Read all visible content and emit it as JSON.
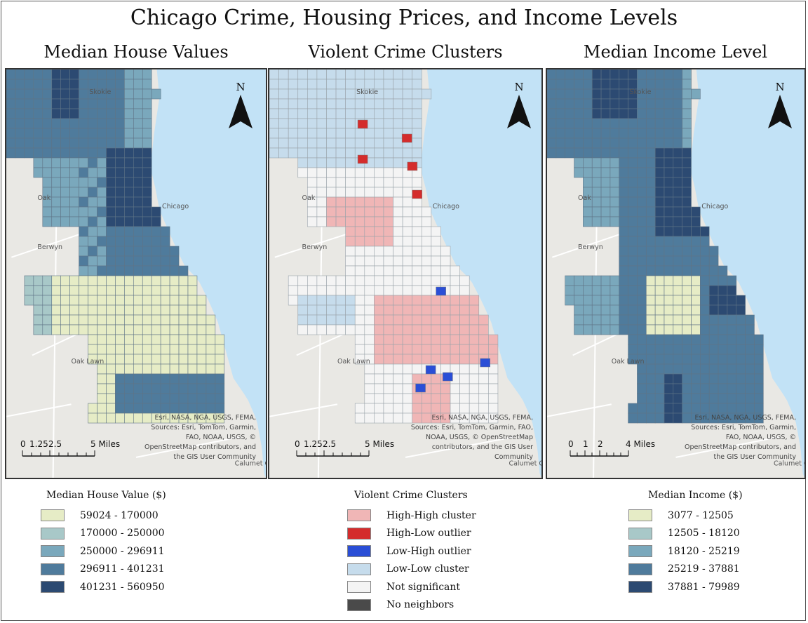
{
  "title": "Chicago Crime, Housing Prices, and Income Levels",
  "panels": [
    {
      "title": "Median House Values",
      "scale": {
        "labels": [
          "0",
          "1.25",
          "2.5",
          "5 Miles"
        ]
      },
      "north": "N",
      "attribution": [
        "Esri, NASA, NGA, USGS, FEMA,",
        "Sources: Esri, TomTom, Garmin,",
        "FAO, NOAA, USGS, ©",
        "OpenStreetMap contributors, and",
        "the GIS User Community"
      ]
    },
    {
      "title": "Violent Crime Clusters",
      "scale": {
        "labels": [
          "0",
          "1.25",
          "2.5",
          "5 Miles"
        ]
      },
      "north": "N",
      "attribution": [
        "Esri, NASA, NGA, USGS, FEMA,",
        "Sources: Esri, TomTom, Garmin, FAO,",
        "NOAA, USGS, © OpenStreetMap",
        "contributors, and the GIS User",
        "Community"
      ]
    },
    {
      "title": "Median Income Level",
      "scale": {
        "labels": [
          "0",
          "1",
          "2",
          "4 Miles"
        ]
      },
      "north": "N",
      "attribution": [
        "Esri, NASA, NGA, USGS, FEMA,",
        "Sources: Esri, TomTom, Garmin,",
        "FAO, NOAA, USGS, ©",
        "OpenStreetMap contributors, and",
        "the GIS User Community"
      ]
    }
  ],
  "place_labels": [
    "Skokie",
    "Oak",
    "Chicago",
    "Berwyn",
    "Oak Lawn",
    "Calumet City"
  ],
  "legends": [
    {
      "title": "Median House Value ($)",
      "items": [
        {
          "label": "59024 - 170000",
          "color": "#e6ecc6"
        },
        {
          "label": "170000 - 250000",
          "color": "#a8c8c8"
        },
        {
          "label": "250000 - 296911",
          "color": "#7aa8bc"
        },
        {
          "label": "296911 - 401231",
          "color": "#4f7b9c"
        },
        {
          "label": "401231 - 560950",
          "color": "#2c4a72"
        }
      ]
    },
    {
      "title": "Violent Crime Clusters",
      "items": [
        {
          "label": "High-High cluster",
          "color": "#f0b6b6"
        },
        {
          "label": "High-Low outlier",
          "color": "#d42c2c"
        },
        {
          "label": "Low-High outlier",
          "color": "#2a4ed6"
        },
        {
          "label": "Low-Low cluster",
          "color": "#c6dcec"
        },
        {
          "label": "Not significant",
          "color": "#f4f4f4"
        },
        {
          "label": "No neighbors",
          "color": "#4a4a4a"
        }
      ]
    },
    {
      "title": "Median Income ($)",
      "items": [
        {
          "label": "3077 - 12505",
          "color": "#e6ecc6"
        },
        {
          "label": "12505 - 18120",
          "color": "#a8c8c8"
        },
        {
          "label": "18120 - 25219",
          "color": "#7aa8bc"
        },
        {
          "label": "25219 - 37881",
          "color": "#4f7b9c"
        },
        {
          "label": "37881 - 79989",
          "color": "#2c4a72"
        }
      ]
    }
  ],
  "colors": {
    "water": "#c2e2f6",
    "land": "#e9e8e4",
    "tract_stroke": "#6b7f8a"
  }
}
